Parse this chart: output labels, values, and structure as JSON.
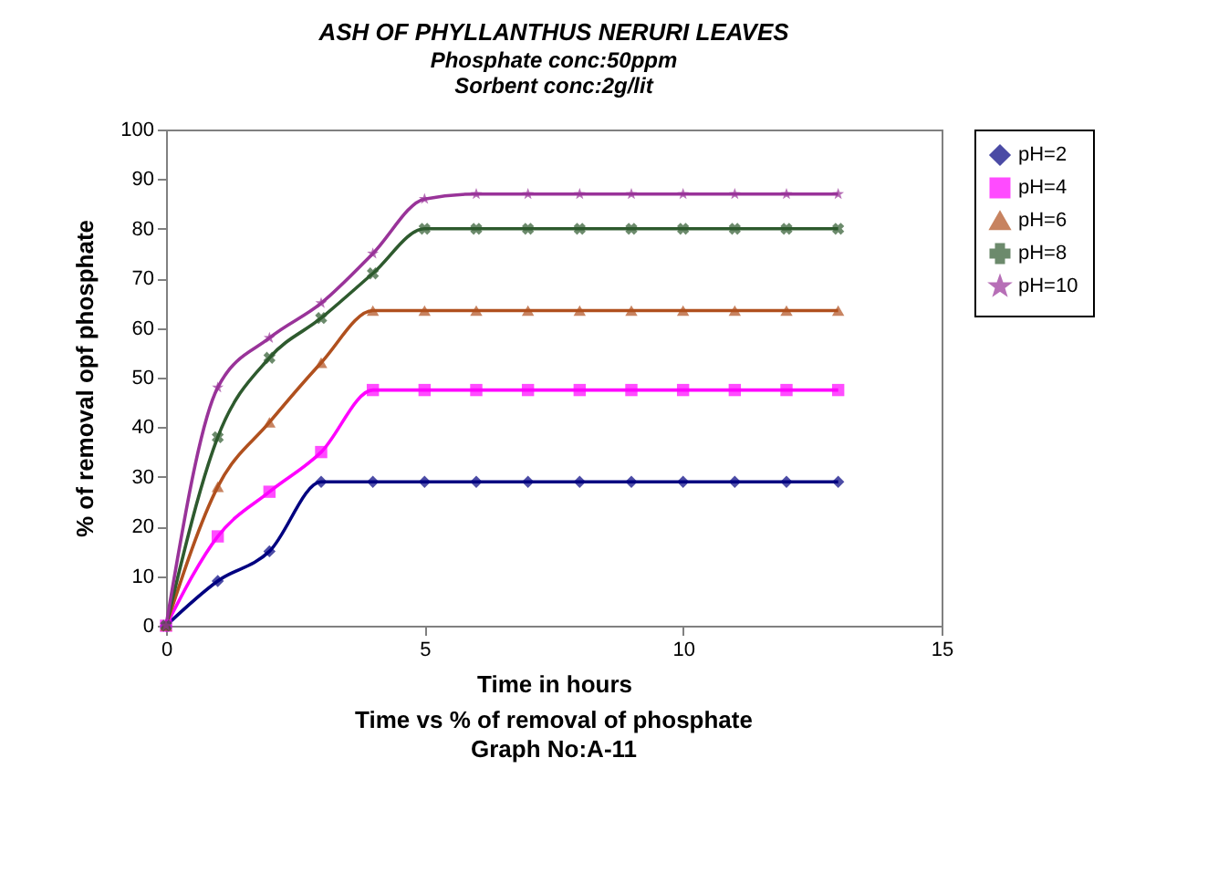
{
  "chart_data": {
    "type": "line",
    "title": "ASH OF  PHYLLANTHUS NERURI  LEAVES",
    "subtitle": "Phosphate conc:50ppm\nSorbent conc:2g/lit",
    "xlabel": "Time in hours",
    "ylabel": "% of removal opf phosphate",
    "annotations": [
      "Time vs % of removal of phosphate",
      "Graph No:A-11"
    ],
    "x": [
      0,
      1,
      2,
      3,
      4,
      5,
      6,
      7,
      8,
      9,
      10,
      11,
      12,
      13
    ],
    "series": [
      {
        "name": "pH=2",
        "color": "#000080",
        "marker": "diamond",
        "values": [
          0,
          9,
          15,
          29,
          29,
          29,
          29,
          29,
          29,
          29,
          29,
          29,
          29,
          29
        ]
      },
      {
        "name": "pH=4",
        "color": "#ff00ff",
        "marker": "square",
        "values": [
          0,
          18,
          27,
          35,
          47.5,
          47.5,
          47.5,
          47.5,
          47.5,
          47.5,
          47.5,
          47.5,
          47.5,
          47.5
        ]
      },
      {
        "name": "pH=6",
        "color": "#b0501e",
        "marker": "triangle",
        "values": [
          0,
          28,
          41,
          53,
          63.5,
          63.5,
          63.5,
          63.5,
          63.5,
          63.5,
          63.5,
          63.5,
          63.5,
          63.5
        ]
      },
      {
        "name": "pH=8",
        "color": "#2e5a2e",
        "marker": "cross",
        "values": [
          0,
          38,
          54,
          62,
          71,
          80,
          80,
          80,
          80,
          80,
          80,
          80,
          80,
          80
        ]
      },
      {
        "name": "pH=10",
        "color": "#993399",
        "marker": "star",
        "values": [
          0,
          48,
          58,
          65,
          75,
          86,
          87,
          87,
          87,
          87,
          87,
          87,
          87,
          87
        ]
      }
    ],
    "xlim": [
      0,
      15
    ],
    "xticks": [
      0,
      5,
      10,
      15
    ],
    "ylim": [
      0,
      100
    ],
    "yticks": [
      0,
      10,
      20,
      30,
      40,
      50,
      60,
      70,
      80,
      90,
      100
    ],
    "grid": false,
    "legend": "right",
    "line_style": "solid"
  }
}
